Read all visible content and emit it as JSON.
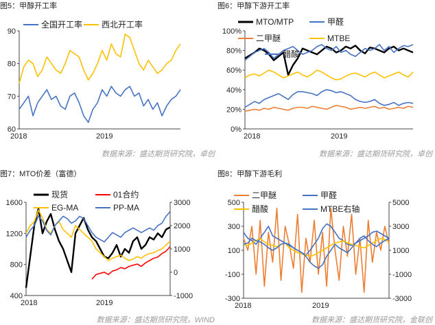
{
  "colors": {
    "black": "#000000",
    "blue": "#4472c4",
    "orange": "#ed7d31",
    "yellow": "#ffc000",
    "red": "#ff0000"
  },
  "panels": [
    {
      "title": "图5：甲醇开工率",
      "source": "数据来源：盛达期货研究院，卓创"
    },
    {
      "title": "图6：甲醇下游开工率",
      "source": "数据来源：盛达期货研究院，卓创"
    },
    {
      "title": "图7：MTO价差（富德）",
      "source": "数据来源：盛达期货研究院，WIND"
    },
    {
      "title": "图8：甲醇下游毛利",
      "source": "数据来源：盛达期货研究院，金联创"
    }
  ],
  "chart_data": [
    {
      "type": "line",
      "x_start": "2017-11",
      "x_end": "2020-03",
      "xticks": [
        "2018",
        "2019"
      ],
      "ylim": [
        60,
        90
      ],
      "yticks": [
        "60",
        "70",
        "80",
        "90"
      ],
      "grid": false,
      "legend": "top",
      "series": [
        {
          "name": "全国开工率",
          "color": "#4472c4",
          "values": [
            66,
            68,
            70,
            64,
            68,
            70,
            72,
            69,
            70,
            67,
            66,
            70,
            71,
            68,
            64,
            62,
            66,
            68,
            72,
            70,
            73,
            71,
            70,
            72,
            73,
            70,
            71,
            67,
            69,
            66,
            68,
            64,
            67,
            69,
            70,
            72
          ]
        },
        {
          "name": "西北开工率",
          "color": "#ffc000",
          "values": [
            74,
            79,
            81,
            80,
            76,
            78,
            82,
            80,
            78,
            77,
            80,
            84,
            83,
            82,
            78,
            75,
            77,
            80,
            84,
            81,
            86,
            83,
            82,
            89,
            88,
            84,
            80,
            78,
            81,
            79,
            77,
            78,
            80,
            81,
            84,
            86
          ]
        }
      ]
    },
    {
      "type": "line",
      "x_start": "2017-11",
      "x_end": "2020-03",
      "xticks": [
        "2018",
        "2019"
      ],
      "ylim": [
        0,
        100
      ],
      "yticks": [
        "0%",
        "20%",
        "40%",
        "60%",
        "80%",
        "100%"
      ],
      "grid": false,
      "legend": "top",
      "series": [
        {
          "name": "MTO/MTP",
          "color": "#000000",
          "values": [
            72,
            75,
            78,
            82,
            80,
            76,
            70,
            74,
            78,
            55,
            65,
            72,
            82,
            80,
            78,
            76,
            80,
            84,
            82,
            78,
            80,
            84,
            82,
            85,
            80,
            77,
            83,
            82,
            80,
            78,
            82,
            84,
            80,
            82,
            80,
            78
          ]
        },
        {
          "name": "甲醛",
          "color": "#4472c4",
          "values": [
            22,
            25,
            28,
            26,
            30,
            32,
            34,
            36,
            33,
            30,
            35,
            38,
            38,
            37,
            36,
            34,
            38,
            40,
            39,
            37,
            38,
            36,
            34,
            30,
            28,
            27,
            28,
            30,
            26,
            24,
            25,
            27,
            24,
            26,
            27,
            26
          ]
        },
        {
          "name": "二甲醚",
          "color": "#ed7d31",
          "values": [
            18,
            19,
            20,
            19,
            21,
            20,
            22,
            21,
            20,
            19,
            21,
            22,
            22,
            21,
            23,
            22,
            21,
            20,
            22,
            24,
            23,
            22,
            20,
            21,
            22,
            21,
            22,
            23,
            21,
            22,
            20,
            21,
            22,
            21,
            23,
            22
          ]
        },
        {
          "name": "MTBE",
          "color": "#ffc000",
          "values": [
            52,
            55,
            56,
            54,
            57,
            60,
            58,
            55,
            52,
            54,
            56,
            58,
            55,
            53,
            56,
            60,
            58,
            55,
            52,
            50,
            51,
            54,
            56,
            57,
            55,
            53,
            56,
            58,
            55,
            52,
            54,
            56,
            58,
            55,
            53,
            58
          ]
        },
        {
          "name": "醋酸",
          "color": "#4472c4",
          "values": [
            70,
            74,
            78,
            80,
            82,
            78,
            72,
            76,
            80,
            82,
            84,
            80,
            76,
            78,
            80,
            84,
            86,
            82,
            80,
            84,
            78,
            80,
            76,
            74,
            78,
            82,
            80,
            82,
            86,
            80,
            84,
            78,
            82,
            85,
            84,
            86
          ]
        }
      ]
    },
    {
      "type": "line",
      "x_start": "2017-11",
      "x_end": "2020-03",
      "xticks": [
        "2018",
        "2019"
      ],
      "ylim_left": [
        400,
        1600
      ],
      "yticks_left": [
        "400",
        "800",
        "1200",
        "1600"
      ],
      "ylim_right": [
        -1000,
        3000
      ],
      "yticks_right": [
        "-1000",
        "0",
        "1000",
        "2000",
        "3000"
      ],
      "grid": false,
      "legend": "top",
      "series": [
        {
          "name": "现货",
          "color": "#000000",
          "axis": "left",
          "values": [
            500,
            900,
            1300,
            1520,
            1200,
            1350,
            1450,
            1250,
            1100,
            1000,
            850,
            700,
            1200,
            1300,
            1400,
            1250,
            1150,
            1100,
            1000,
            900,
            880,
            950,
            1050,
            900,
            1000,
            950,
            1100,
            1150,
            1000,
            1050,
            1150,
            1120,
            1200,
            1150,
            1250,
            1280
          ]
        },
        {
          "name": "01合约",
          "color": "#ff0000",
          "axis": "right",
          "values": [
            null,
            null,
            null,
            null,
            null,
            null,
            null,
            null,
            null,
            null,
            null,
            null,
            null,
            null,
            null,
            null,
            -300,
            -100,
            -50,
            0,
            -100,
            50,
            100,
            200,
            150,
            250,
            300,
            350,
            250,
            400,
            500,
            600,
            650,
            800,
            900,
            1100
          ]
        },
        {
          "name": "EG-MA",
          "color": "#ffc000",
          "axis": "left",
          "values": [
            1200,
            1300,
            1350,
            1500,
            1400,
            1250,
            1200,
            1300,
            1350,
            1250,
            1200,
            1150,
            1300,
            1250,
            1200,
            1150,
            1100,
            1000,
            950,
            900,
            850,
            880,
            900,
            920,
            880,
            850,
            870,
            900,
            880,
            920,
            940,
            950,
            980,
            1000,
            1050,
            1100
          ]
        },
        {
          "name": "PP-MA",
          "color": "#4472c4",
          "axis": "right",
          "values": [
            1500,
            1800,
            2000,
            2400,
            2200,
            1800,
            1600,
            2000,
            2200,
            2400,
            2300,
            2100,
            2200,
            2400,
            2300,
            2000,
            1700,
            1500,
            1400,
            1300,
            1500,
            1700,
            1600,
            1500,
            1700,
            1800,
            1900,
            1800,
            1700,
            1800,
            1900,
            1800,
            2000,
            2100,
            2400,
            2600
          ]
        }
      ]
    },
    {
      "type": "line",
      "x_start": "2017-11",
      "x_end": "2020-03",
      "xticks": [
        "2018",
        "2019"
      ],
      "ylim_left": [
        -300,
        500
      ],
      "yticks_left": [
        "-300",
        "-100",
        "100",
        "300",
        "500"
      ],
      "ylim_right": [
        -3000,
        5000
      ],
      "yticks_right": [
        "-3000",
        "-1000",
        "1000",
        "3000",
        "5000"
      ],
      "grid": false,
      "legend": "top",
      "series": [
        {
          "name": "二甲醚",
          "color": "#ed7d31",
          "axis": "left",
          "values": [
            200,
            100,
            300,
            -100,
            350,
            -200,
            250,
            0,
            450,
            -150,
            300,
            150,
            -50,
            400,
            -250,
            200,
            0,
            350,
            -100,
            250,
            -200,
            450,
            100,
            -150,
            300,
            50,
            400,
            -100,
            200,
            -250,
            350,
            0,
            250,
            100,
            300,
            150
          ]
        },
        {
          "name": "甲醛",
          "color": "#4472c4",
          "axis": "left",
          "values": [
            250,
            200,
            180,
            150,
            200,
            250,
            300,
            220,
            200,
            180,
            160,
            150,
            120,
            100,
            80,
            60,
            100,
            150,
            200,
            280,
            320,
            300,
            250,
            200,
            180,
            150,
            140,
            160,
            180,
            200,
            220,
            250,
            260,
            240,
            220,
            200
          ]
        },
        {
          "name": "醋酸",
          "color": "#ffc000",
          "axis": "left",
          "values": [
            150,
            140,
            160,
            180,
            200,
            170,
            150,
            140,
            130,
            150,
            160,
            120,
            100,
            80,
            70,
            60,
            50,
            60,
            80,
            100,
            120,
            140,
            160,
            170,
            180,
            160,
            150,
            140,
            130,
            120,
            140,
            160,
            180,
            200,
            190,
            170
          ]
        },
        {
          "name": "MTBE右轴",
          "color": "#4472c4",
          "axis": "right",
          "values": [
            1500,
            1600,
            2000,
            1800,
            1700,
            1500,
            1200,
            1000,
            1200,
            1500,
            1600,
            1400,
            1200,
            1000,
            800,
            500,
            0,
            -300,
            -500,
            -200,
            500,
            1000,
            1500,
            1200,
            1000,
            800,
            1200,
            1600,
            2000,
            2200,
            1800,
            1500,
            1300,
            1600,
            1800,
            2000
          ]
        }
      ]
    }
  ]
}
